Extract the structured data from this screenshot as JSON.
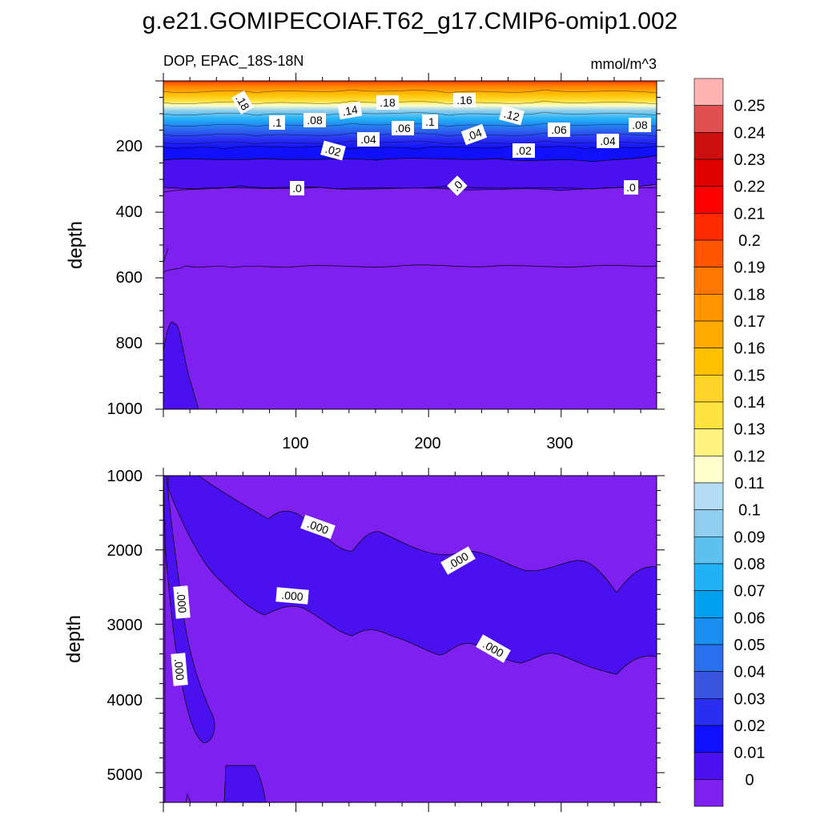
{
  "title": "g.e21.GOMIPECOIAF.T62_g17.CMIP6-omip1.002",
  "chart_data": {
    "type": "contour",
    "variable_label": "DOP, EPAC_18S-18N",
    "units": "mmol/m^3",
    "colorbar": {
      "levels": [
        "0.25",
        "0.24",
        "0.23",
        "0.22",
        "0.21",
        "0.2",
        "0.19",
        "0.18",
        "0.17",
        "0.16",
        "0.15",
        "0.14",
        "0.13",
        "0.12",
        "0.11",
        "0.1",
        "0.09",
        "0.08",
        "0.07",
        "0.06",
        "0.05",
        "0.04",
        "0.03",
        "0.02",
        "0.01",
        "0"
      ],
      "colors": [
        "#ffb3b3",
        "#e05050",
        "#cc1010",
        "#e00000",
        "#ff0000",
        "#ff2a00",
        "#ff5500",
        "#ff7700",
        "#ff9400",
        "#ffaa00",
        "#ffc000",
        "#ffd42a",
        "#ffe340",
        "#fff280",
        "#ffffcc",
        "#b4dcf5",
        "#90cdef",
        "#5ec0ef",
        "#20b2f5",
        "#00a0f0",
        "#1a8df0",
        "#2a70ee",
        "#3a56e0",
        "#2a2ef0",
        "#1010ff",
        "#4b10f0",
        "#7d20f0"
      ]
    },
    "panels": [
      {
        "id": "upper",
        "ylabel": "depth",
        "ylim": [
          1000,
          0
        ],
        "xlim": [
          0,
          372
        ],
        "yticks": [
          "200",
          "400",
          "600",
          "800",
          "1000"
        ],
        "xticks": [
          "100",
          "200",
          "300"
        ],
        "contour_labels": [
          ".18",
          ".1",
          ".08",
          ".14",
          ".18",
          ".16",
          ".12",
          ".04",
          ".06",
          ".1",
          ".04",
          ".06",
          ".08",
          ".02",
          ".02",
          ".04",
          ".0",
          ".0",
          ".0"
        ]
      },
      {
        "id": "lower",
        "ylabel": "depth",
        "ylim": [
          1000,
          5400
        ],
        "xlim": [
          0,
          372
        ],
        "yticks": [
          "1000",
          "2000",
          "3000",
          "4000",
          "5000"
        ],
        "contour_labels": [
          ".000",
          ".000",
          ".000",
          ".000",
          ".000",
          ".000"
        ]
      }
    ]
  }
}
